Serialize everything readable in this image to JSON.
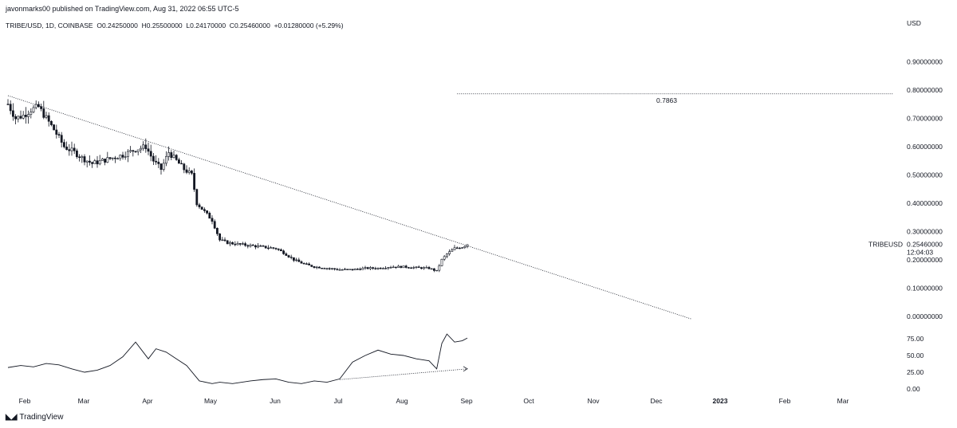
{
  "header": {
    "publish": "javonmarks00 published on TradingView.com, Aug 31, 2022 06:55 UTC-5",
    "symbol": "TRIBE/USD, 1D, COINBASE",
    "o_label": "O",
    "o": "0.24250000",
    "h_label": "H",
    "h": "0.25500000",
    "l_label": "L",
    "l": "0.24170000",
    "c_label": "C",
    "c": "0.25460000",
    "change": "+0.01280000 (+5.29%)"
  },
  "footer": {
    "brand": "TradingView",
    "logo": "tradingview-logo-icon"
  },
  "colors": {
    "candle": "#131722",
    "line": "#131722",
    "grid": "#ffffff",
    "text": "#131722"
  },
  "chart_data": [
    {
      "type": "candlestick",
      "currency": "USD",
      "x_ticks": [
        "Feb",
        "Mar",
        "Apr",
        "May",
        "Jun",
        "Jul",
        "Aug",
        "Sep",
        "Oct",
        "Nov",
        "Dec",
        "2023",
        "Feb",
        "Mar"
      ],
      "y_ticks": [
        "0.90000000",
        "0.80000000",
        "0.70000000",
        "0.60000000",
        "0.50000000",
        "0.40000000",
        "0.30000000",
        "0.20000000",
        "0.10000000",
        "0.00000000"
      ],
      "ylim": [
        -0.02,
        0.98
      ],
      "last_price_label": "TRIBEUSD",
      "last_price": "0.25460000",
      "countdown": "12:04:03",
      "close_path": [
        {
          "t": 0,
          "v": 0.75
        },
        {
          "t": 3,
          "v": 0.7
        },
        {
          "t": 6,
          "v": 0.71
        },
        {
          "t": 9,
          "v": 0.73
        },
        {
          "t": 12,
          "v": 0.74
        },
        {
          "t": 15,
          "v": 0.7
        },
        {
          "t": 18,
          "v": 0.66
        },
        {
          "t": 22,
          "v": 0.6
        },
        {
          "t": 26,
          "v": 0.58
        },
        {
          "t": 29,
          "v": 0.56
        },
        {
          "t": 33,
          "v": 0.54
        },
        {
          "t": 37,
          "v": 0.55
        },
        {
          "t": 41,
          "v": 0.56
        },
        {
          "t": 45,
          "v": 0.57
        },
        {
          "t": 50,
          "v": 0.59
        },
        {
          "t": 54,
          "v": 0.6
        },
        {
          "t": 57,
          "v": 0.55
        },
        {
          "t": 60,
          "v": 0.52
        },
        {
          "t": 63,
          "v": 0.58
        },
        {
          "t": 66,
          "v": 0.55
        },
        {
          "t": 69,
          "v": 0.52
        },
        {
          "t": 72,
          "v": 0.5
        },
        {
          "t": 74,
          "v": 0.4
        },
        {
          "t": 77,
          "v": 0.37
        },
        {
          "t": 80,
          "v": 0.34
        },
        {
          "t": 83,
          "v": 0.27
        },
        {
          "t": 86,
          "v": 0.26
        },
        {
          "t": 90,
          "v": 0.255
        },
        {
          "t": 95,
          "v": 0.25
        },
        {
          "t": 100,
          "v": 0.245
        },
        {
          "t": 105,
          "v": 0.24
        },
        {
          "t": 108,
          "v": 0.225
        },
        {
          "t": 112,
          "v": 0.2
        },
        {
          "t": 116,
          "v": 0.185
        },
        {
          "t": 120,
          "v": 0.175
        },
        {
          "t": 125,
          "v": 0.17
        },
        {
          "t": 130,
          "v": 0.165
        },
        {
          "t": 135,
          "v": 0.165
        },
        {
          "t": 140,
          "v": 0.17
        },
        {
          "t": 145,
          "v": 0.17
        },
        {
          "t": 150,
          "v": 0.175
        },
        {
          "t": 155,
          "v": 0.175
        },
        {
          "t": 160,
          "v": 0.172
        },
        {
          "t": 165,
          "v": 0.17
        },
        {
          "t": 168,
          "v": 0.16
        },
        {
          "t": 170,
          "v": 0.2
        },
        {
          "t": 172,
          "v": 0.22
        },
        {
          "t": 175,
          "v": 0.24
        },
        {
          "t": 178,
          "v": 0.245
        },
        {
          "t": 180,
          "v": 0.255
        }
      ],
      "trendline": {
        "start": {
          "t": 0,
          "v": 0.78
        },
        "end": {
          "t": 268,
          "v": -0.01
        }
      },
      "horizontal_level": {
        "value": 0.7863,
        "label": "0.7863",
        "start_t": 176,
        "end_t": 347
      }
    },
    {
      "type": "line",
      "y_ticks": [
        "75.00",
        "50.00",
        "25.00",
        "0.00"
      ],
      "ylim": [
        0,
        100
      ],
      "x": [
        0,
        5,
        10,
        15,
        20,
        25,
        30,
        35,
        40,
        45,
        50,
        55,
        58,
        62,
        66,
        70,
        75,
        80,
        83,
        88,
        95,
        100,
        105,
        110,
        115,
        120,
        125,
        130,
        135,
        140,
        145,
        150,
        155,
        160,
        165,
        168,
        170,
        172,
        175,
        178,
        180
      ],
      "values": [
        32,
        35,
        33,
        38,
        36,
        30,
        25,
        28,
        35,
        48,
        70,
        45,
        60,
        55,
        45,
        35,
        12,
        8,
        10,
        8,
        12,
        14,
        15,
        10,
        8,
        12,
        10,
        15,
        40,
        50,
        58,
        52,
        50,
        45,
        42,
        30,
        68,
        82,
        70,
        72,
        76
      ],
      "divergence_line": {
        "start": {
          "t": 130,
          "v": 14
        },
        "end": {
          "t": 180,
          "v": 30
        }
      }
    }
  ]
}
